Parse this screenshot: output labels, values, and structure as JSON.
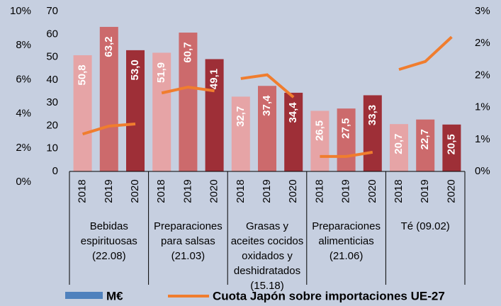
{
  "chart_data": {
    "type": "bar",
    "categories": [
      "2018",
      "2019",
      "2020",
      "2018",
      "2019",
      "2020",
      "2018",
      "2019",
      "2020",
      "2018",
      "2019",
      "2020",
      "2018",
      "2019",
      "2020"
    ],
    "groups": [
      [
        "Bebidas",
        "espirituosas",
        "(22.08)"
      ],
      [
        "Preparaciones",
        "para salsas",
        "(21.03)"
      ],
      [
        "Grasas y",
        "aceites cocidos",
        "oxidados y",
        "deshidratados",
        "(15.18)"
      ],
      [
        "Preparaciones",
        "alimenticias",
        "(21.06)"
      ],
      [
        "Té (09.02)"
      ]
    ],
    "series": [
      {
        "name": "M€",
        "color": "#4f81bd",
        "bar_colors": [
          "#e6a4a6",
          "#cc6a6c",
          "#9e2f37"
        ],
        "values": [
          50.8,
          63.2,
          53.0,
          51.9,
          60.7,
          49.1,
          32.7,
          37.4,
          34.4,
          26.5,
          27.5,
          33.3,
          20.7,
          22.7,
          20.5
        ],
        "value_labels": [
          "50,8",
          "63,2",
          "53,0",
          "51,9",
          "60,7",
          "49,1",
          "32,7",
          "37,4",
          "34,4",
          "26,5",
          "27,5",
          "33,3",
          "20,7",
          "22,7",
          "20,5"
        ]
      },
      {
        "name": "Cuota Japón sobre importaciones UE-27",
        "type": "line",
        "axis": "y2",
        "color": "#f07d2e",
        "values": [
          0.7,
          0.85,
          0.89,
          1.47,
          1.58,
          1.51,
          1.74,
          1.81,
          1.39,
          0.28,
          0.28,
          0.36,
          1.91,
          2.06,
          2.52
        ]
      }
    ],
    "ylim": [
      0,
      70
    ],
    "yticks": [
      0,
      10,
      20,
      30,
      40,
      50,
      60,
      70
    ],
    "y2lim": [
      0,
      3
    ],
    "y2ticks": [
      {
        "value": 0,
        "label": "0%"
      },
      {
        "value": 0.6,
        "label": "1%"
      },
      {
        "value": 1.2,
        "label": "1%"
      },
      {
        "value": 1.8,
        "label": "2%"
      },
      {
        "value": 2.4,
        "label": "2%"
      },
      {
        "value": 3.0,
        "label": "3%"
      }
    ],
    "y3lim": [
      0,
      10
    ],
    "y3ticks": [
      {
        "value": 0,
        "label": "0%"
      },
      {
        "value": 2,
        "label": "2%"
      },
      {
        "value": 4,
        "label": "4%"
      },
      {
        "value": 6,
        "label": "6%"
      },
      {
        "value": 8,
        "label": "8%"
      },
      {
        "value": 10,
        "label": "10%"
      }
    ]
  }
}
